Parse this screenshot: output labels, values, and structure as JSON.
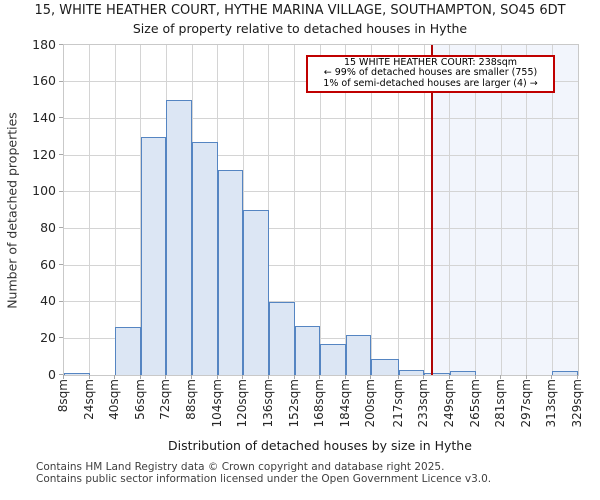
{
  "title": {
    "line1": "15, WHITE HEATHER COURT, HYTHE MARINA VILLAGE, SOUTHAMPTON, SO45 6DT",
    "line2": "Size of property relative to detached houses in Hythe"
  },
  "y_axis": {
    "label": "Number of detached properties",
    "tick_labels": [
      "0",
      "20",
      "40",
      "60",
      "80",
      "100",
      "120",
      "140",
      "160",
      "180"
    ],
    "max": 180
  },
  "x_axis": {
    "label": "Distribution of detached houses by size in Hythe"
  },
  "annotation": {
    "line1": "15 WHITE HEATHER COURT: 238sqm",
    "line2": "← 99% of detached houses are smaller (755)",
    "line3": "1% of semi-detached houses are larger (4) →"
  },
  "footer": {
    "line1": "Contains HM Land Registry data © Crown copyright and database right 2025.",
    "line2": "Contains public sector information licensed under the Open Government Licence v3.0."
  },
  "chart_data": {
    "type": "bar",
    "title": "Size of property relative to detached houses in Hythe",
    "xlabel": "Distribution of detached houses by size in Hythe",
    "ylabel": "Number of detached properties",
    "ylim": [
      0,
      180
    ],
    "grid": true,
    "legend": "none",
    "bin_edges_sqm": [
      8,
      24,
      40,
      56,
      72,
      88,
      104,
      120,
      136,
      152,
      168,
      184,
      200,
      217,
      233,
      249,
      265,
      281,
      297,
      313,
      329
    ],
    "categories": [
      "8sqm",
      "24sqm",
      "40sqm",
      "56sqm",
      "72sqm",
      "88sqm",
      "104sqm",
      "120sqm",
      "136sqm",
      "152sqm",
      "168sqm",
      "184sqm",
      "200sqm",
      "217sqm",
      "233sqm",
      "249sqm",
      "265sqm",
      "281sqm",
      "297sqm",
      "313sqm",
      "329sqm"
    ],
    "values": [
      1,
      0,
      26,
      130,
      150,
      127,
      112,
      90,
      40,
      27,
      17,
      22,
      9,
      3,
      1,
      2,
      0,
      0,
      0,
      2
    ],
    "marker_value_sqm": 238,
    "highlight_region_sqm": [
      238,
      329
    ]
  },
  "colors": {
    "bar_fill": "#dce6f4",
    "bar_border": "#5585c2",
    "marker_line": "#b00606",
    "annotation_border": "#c00000",
    "highlight_fill": "#f2f5fc",
    "gridline": "#d4d4d4",
    "axis_border": "#c9c9c9"
  }
}
